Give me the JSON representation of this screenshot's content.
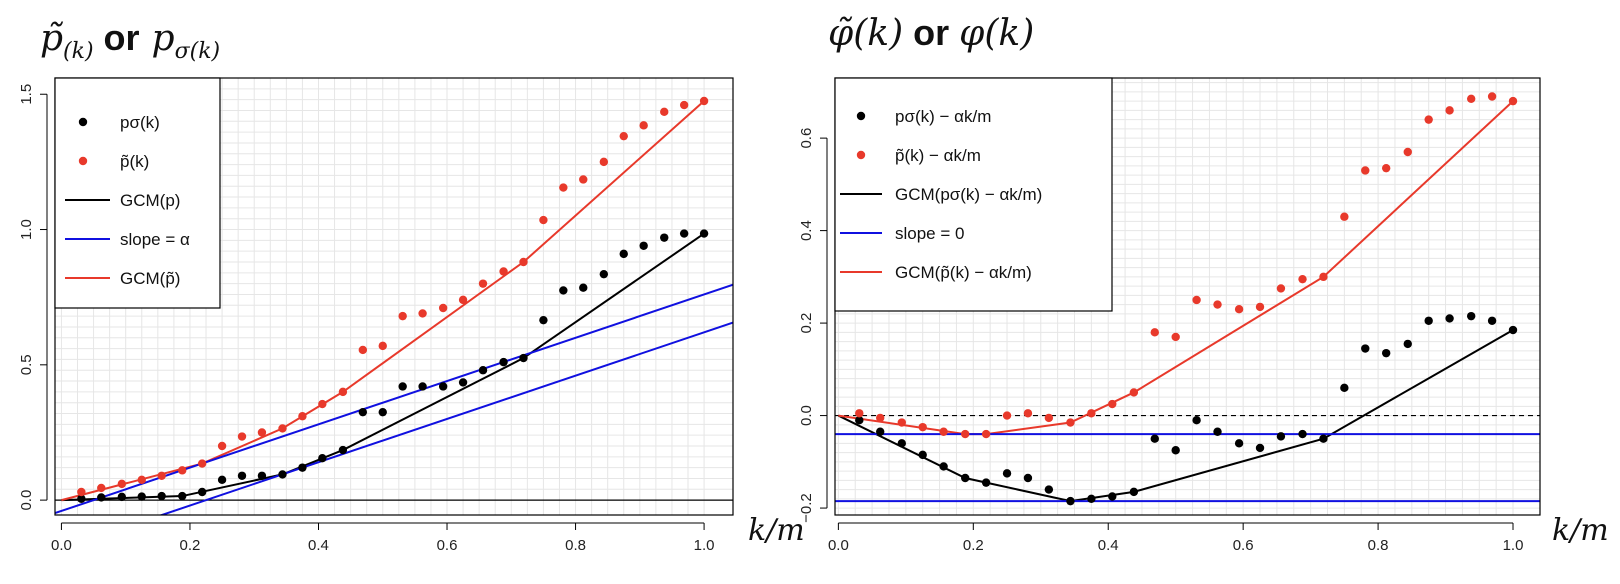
{
  "panels": [
    {
      "title": "p̃(k) or pσ(k)",
      "xlabel": "k/m",
      "legend": [
        {
          "label": "pσ(k)",
          "kind": "point",
          "color": "#000000"
        },
        {
          "label": "p̃(k)",
          "kind": "point",
          "color": "#e8392b"
        },
        {
          "label": "GCM(p)",
          "kind": "line",
          "color": "#000000"
        },
        {
          "label": "slope = α",
          "kind": "line",
          "color": "#1010e0"
        },
        {
          "label": "GCM(p̃)",
          "kind": "line",
          "color": "#e8392b"
        }
      ]
    },
    {
      "title": "φ̃(k) or φ(k)",
      "xlabel": "k/m",
      "legend": [
        {
          "label": "pσ(k) − αk/m",
          "kind": "point",
          "color": "#000000"
        },
        {
          "label": "p̃(k) − αk/m",
          "kind": "point",
          "color": "#e8392b"
        },
        {
          "label": "GCM(pσ(k) − αk/m)",
          "kind": "line",
          "color": "#000000"
        },
        {
          "label": "slope = 0",
          "kind": "line",
          "color": "#1010e0"
        },
        {
          "label": "GCM(p̃(k) − αk/m)",
          "kind": "line",
          "color": "#e8392b"
        }
      ]
    }
  ],
  "chart_data": [
    {
      "type": "scatter",
      "title": "p̃(k) or pσ(k)",
      "xlabel": "k/m",
      "ylabel": "",
      "xlim": [
        0,
        1
      ],
      "ylim": [
        0,
        1.5
      ],
      "xticks": [
        "0.0",
        "0.2",
        "0.4",
        "0.6",
        "0.8",
        "1.0"
      ],
      "yticks": [
        "0.0",
        "0.5",
        "1.0",
        "1.5"
      ],
      "grid": true,
      "legend_position": "top-left",
      "x": [
        0.031,
        0.062,
        0.094,
        0.125,
        0.156,
        0.188,
        0.219,
        0.25,
        0.281,
        0.312,
        0.344,
        0.375,
        0.406,
        0.438,
        0.469,
        0.5,
        0.531,
        0.562,
        0.594,
        0.625,
        0.656,
        0.688,
        0.719,
        0.75,
        0.781,
        0.812,
        0.844,
        0.875,
        0.906,
        0.938,
        0.969,
        1.0
      ],
      "series": [
        {
          "name": "pσ(k)",
          "kind": "points",
          "color": "#000000",
          "values": [
            0.005,
            0.01,
            0.012,
            0.013,
            0.015,
            0.015,
            0.03,
            0.075,
            0.09,
            0.09,
            0.095,
            0.12,
            0.155,
            0.185,
            0.325,
            0.325,
            0.42,
            0.42,
            0.42,
            0.435,
            0.48,
            0.51,
            0.525,
            0.665,
            0.775,
            0.785,
            0.835,
            0.91,
            0.94,
            0.97,
            0.985,
            0.985
          ]
        },
        {
          "name": "p̃(k)",
          "kind": "points",
          "color": "#e8392b",
          "values": [
            0.03,
            0.045,
            0.06,
            0.075,
            0.09,
            0.11,
            0.135,
            0.2,
            0.235,
            0.25,
            0.265,
            0.31,
            0.355,
            0.4,
            0.555,
            0.57,
            0.68,
            0.69,
            0.71,
            0.74,
            0.8,
            0.845,
            0.88,
            1.035,
            1.155,
            1.185,
            1.25,
            1.345,
            1.385,
            1.435,
            1.46,
            1.475
          ]
        },
        {
          "name": "GCM(p)",
          "kind": "line",
          "color": "#000000",
          "x": [
            0.0,
            0.188,
            0.344,
            0.438,
            0.719,
            1.0
          ],
          "values": [
            0.0,
            0.015,
            0.095,
            0.185,
            0.525,
            0.985
          ]
        },
        {
          "name": "GCM(p̃)",
          "kind": "line",
          "color": "#e8392b",
          "x": [
            0.0,
            0.219,
            0.344,
            0.438,
            0.719,
            1.0
          ],
          "values": [
            0.0,
            0.135,
            0.265,
            0.4,
            0.88,
            1.475
          ]
        },
        {
          "name": "slope = α",
          "kind": "abline",
          "color": "#1010e0",
          "slope": 0.8,
          "intercept": -0.04
        },
        {
          "name": "slope = α",
          "kind": "abline",
          "color": "#1010e0",
          "slope": 0.8,
          "intercept": -0.18
        }
      ],
      "hline": 0.0
    },
    {
      "type": "scatter",
      "title": "φ̃(k) or φ(k)",
      "xlabel": "k/m",
      "ylabel": "",
      "xlim": [
        0,
        1
      ],
      "ylim": [
        -0.2,
        0.72
      ],
      "xticks": [
        "0.0",
        "0.2",
        "0.4",
        "0.6",
        "0.8",
        "1.0"
      ],
      "yticks": [
        "−0.2",
        "0.0",
        "0.2",
        "0.4",
        "0.6"
      ],
      "yticks_values": [
        -0.2,
        0.0,
        0.2,
        0.4,
        0.6
      ],
      "grid": true,
      "legend_position": "top-left",
      "x": [
        0.031,
        0.062,
        0.094,
        0.125,
        0.156,
        0.188,
        0.219,
        0.25,
        0.281,
        0.312,
        0.344,
        0.375,
        0.406,
        0.438,
        0.469,
        0.5,
        0.531,
        0.562,
        0.594,
        0.625,
        0.656,
        0.688,
        0.719,
        0.75,
        0.781,
        0.812,
        0.844,
        0.875,
        0.906,
        0.938,
        0.969,
        1.0
      ],
      "series": [
        {
          "name": "pσ(k) − αk/m",
          "kind": "points",
          "color": "#000000",
          "values": [
            -0.01,
            -0.035,
            -0.06,
            -0.085,
            -0.11,
            -0.135,
            -0.145,
            -0.125,
            -0.135,
            -0.16,
            -0.185,
            -0.18,
            -0.175,
            -0.165,
            -0.05,
            -0.075,
            -0.01,
            -0.035,
            -0.06,
            -0.07,
            -0.045,
            -0.04,
            -0.05,
            0.06,
            0.145,
            0.135,
            0.155,
            0.205,
            0.21,
            0.215,
            0.205,
            0.185
          ]
        },
        {
          "name": "p̃(k) − αk/m",
          "kind": "points",
          "color": "#e8392b",
          "values": [
            0.005,
            -0.005,
            -0.015,
            -0.025,
            -0.035,
            -0.04,
            -0.04,
            0.0,
            0.005,
            -0.005,
            -0.015,
            0.005,
            0.025,
            0.05,
            0.18,
            0.17,
            0.25,
            0.24,
            0.23,
            0.235,
            0.275,
            0.295,
            0.3,
            0.43,
            0.53,
            0.535,
            0.57,
            0.64,
            0.66,
            0.685,
            0.69,
            0.68
          ]
        },
        {
          "name": "GCM(pσ(k) − αk/m)",
          "kind": "line",
          "color": "#000000",
          "x": [
            0.0,
            0.188,
            0.219,
            0.344,
            0.438,
            0.719,
            1.0
          ],
          "values": [
            0.0,
            -0.135,
            -0.145,
            -0.185,
            -0.165,
            -0.05,
            0.185
          ]
        },
        {
          "name": "GCM(p̃(k) − αk/m)",
          "kind": "line",
          "color": "#e8392b",
          "x": [
            0.0,
            0.188,
            0.219,
            0.344,
            0.438,
            0.719,
            1.0
          ],
          "values": [
            0.0,
            -0.04,
            -0.04,
            -0.015,
            0.05,
            0.3,
            0.68
          ]
        },
        {
          "name": "slope = 0",
          "kind": "hline",
          "color": "#1010e0",
          "value": -0.04
        },
        {
          "name": "slope = 0",
          "kind": "hline",
          "color": "#1010e0",
          "value": -0.185
        }
      ],
      "dashed_hline": 0.0
    }
  ]
}
